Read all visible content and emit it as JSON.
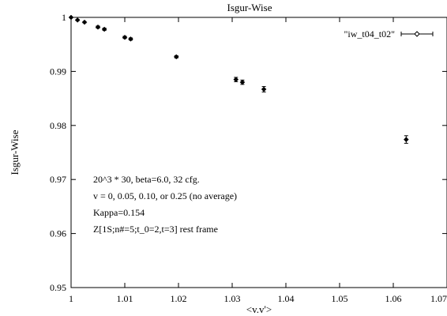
{
  "chart_data": {
    "type": "scatter",
    "title": "Isgur-Wise",
    "xlabel": "<v.v'>",
    "ylabel": "Isgur-Wise",
    "xlim": [
      1,
      1.07
    ],
    "ylim": [
      0.95,
      1
    ],
    "xticks": [
      1,
      1.01,
      1.02,
      1.03,
      1.04,
      1.05,
      1.06,
      1.07
    ],
    "yticks": [
      0.95,
      0.96,
      0.97,
      0.98,
      0.99,
      1
    ],
    "xtick_labels": [
      "1",
      "1.01",
      "1.02",
      "1.03",
      "1.04",
      "1.05",
      "1.06",
      "1.07"
    ],
    "ytick_labels": [
      "0.95",
      "0.96",
      "0.97",
      "0.98",
      "0.99",
      "1"
    ],
    "grid": false,
    "legend_position": "top-right",
    "series": [
      {
        "name": "\"iw_t04_t02\"",
        "marker": "diamond",
        "error_bars": "x-and-y",
        "points": [
          {
            "x": 1.0,
            "y": 1.0,
            "yerr": 0.0
          },
          {
            "x": 1.0012,
            "y": 0.9995,
            "yerr": 0.0001
          },
          {
            "x": 1.0025,
            "y": 0.9991,
            "yerr": 0.0001
          },
          {
            "x": 1.005,
            "y": 0.9982,
            "yerr": 0.0002
          },
          {
            "x": 1.0062,
            "y": 0.9978,
            "yerr": 0.0002
          },
          {
            "x": 1.01,
            "y": 0.9963,
            "yerr": 0.0002
          },
          {
            "x": 1.0111,
            "y": 0.996,
            "yerr": 0.0002
          },
          {
            "x": 1.0196,
            "y": 0.9927,
            "yerr": 0.0002
          },
          {
            "x": 1.0307,
            "y": 0.9885,
            "yerr": 0.0004
          },
          {
            "x": 1.0319,
            "y": 0.988,
            "yerr": 0.0004
          },
          {
            "x": 1.0359,
            "y": 0.9867,
            "yerr": 0.0005
          },
          {
            "x": 1.0624,
            "y": 0.9774,
            "yerr": 0.0007
          }
        ]
      }
    ],
    "annotations": [
      "20^3 * 30, beta=6.0, 32 cfg.",
      "v = 0, 0.05, 0.10, or 0.25 (no average)",
      "Kappa=0.154",
      "Z[1S;n#=5;t_0=2,t=3] rest frame"
    ]
  }
}
